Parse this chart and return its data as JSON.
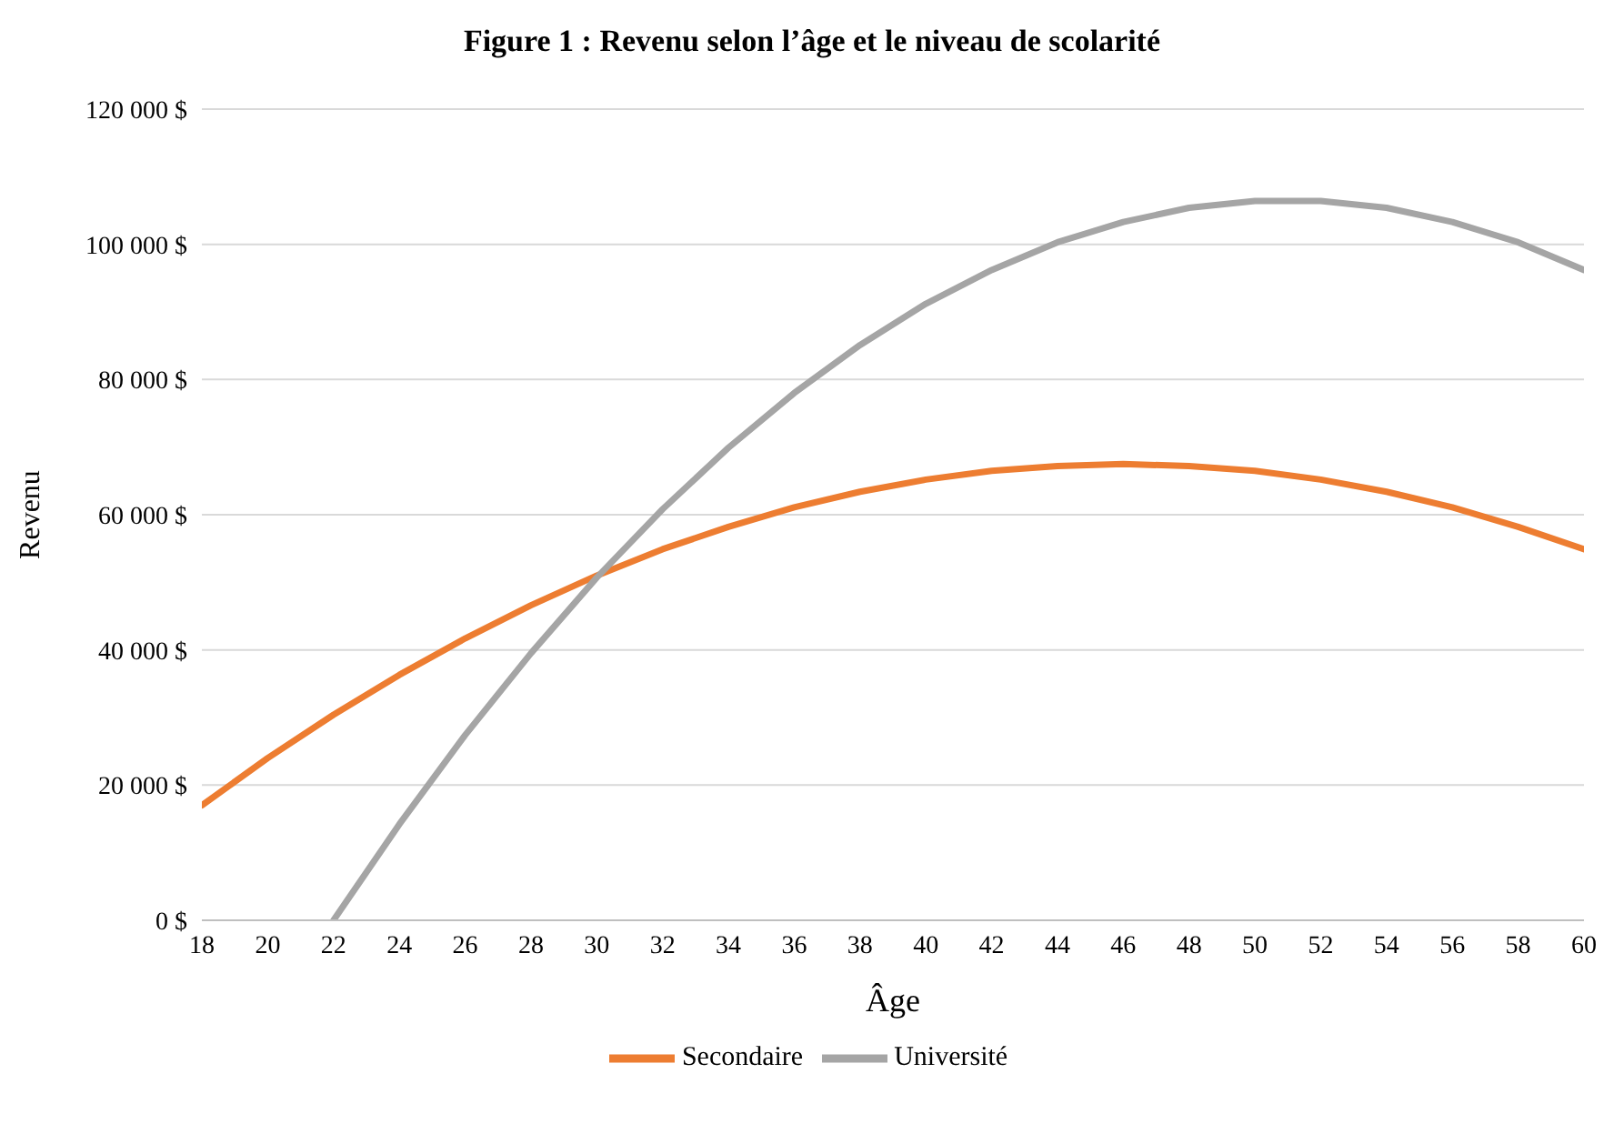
{
  "chart_data": {
    "type": "line",
    "title": "Figure 1 : Revenu selon l’âge et le niveau de scolarité",
    "xlabel": "Âge",
    "ylabel": "Revenu",
    "x": [
      18,
      20,
      22,
      24,
      26,
      28,
      30,
      32,
      34,
      36,
      38,
      40,
      42,
      44,
      46,
      48,
      50,
      52,
      54,
      56,
      58,
      60
    ],
    "series": [
      {
        "name": "Secondaire",
        "color": "#ed7d31",
        "values": [
          17000,
          24000,
          30400,
          36300,
          41700,
          46600,
          51000,
          54900,
          58200,
          61100,
          63400,
          65200,
          66500,
          67200,
          67500,
          67200,
          66500,
          65200,
          63400,
          61100,
          58200,
          54900
        ]
      },
      {
        "name": "Université",
        "color": "#a5a5a5",
        "values": [
          null,
          null,
          0,
          14200,
          27400,
          39500,
          50700,
          60800,
          69900,
          78000,
          85100,
          91200,
          96200,
          100300,
          103300,
          105400,
          106400,
          106400,
          105400,
          103300,
          100300,
          96200
        ]
      }
    ],
    "xlim": [
      18,
      60
    ],
    "xticks": [
      18,
      20,
      22,
      24,
      26,
      28,
      30,
      32,
      34,
      36,
      38,
      40,
      42,
      44,
      46,
      48,
      50,
      52,
      54,
      56,
      58,
      60
    ],
    "ylim": [
      0,
      120000
    ],
    "yticks": [
      {
        "value": 0,
        "label": "0 $"
      },
      {
        "value": 20000,
        "label": "20 000 $"
      },
      {
        "value": 40000,
        "label": "40 000 $"
      },
      {
        "value": 60000,
        "label": "60 000 $"
      },
      {
        "value": 80000,
        "label": "80 000 $"
      },
      {
        "value": 100000,
        "label": "100 000 $"
      },
      {
        "value": 120000,
        "label": "120 000 $"
      }
    ],
    "grid": "y",
    "legend": "bottom",
    "marker": "none",
    "line_style": "solid"
  }
}
